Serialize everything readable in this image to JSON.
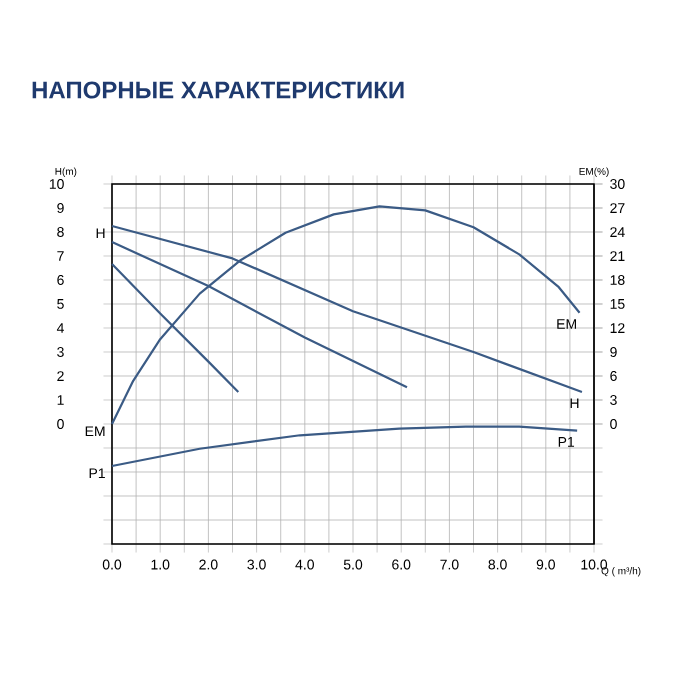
{
  "chart_data": {
    "type": "line",
    "title": "НАПОРНЫЕ ХАРАКТЕРИСТИКИ",
    "xlabel": "Q ( m³/h)",
    "ylabel": "H(m)",
    "y2label": "EM(%)",
    "xlim": [
      0,
      10
    ],
    "xticks": [
      {
        "value": 0,
        "label": "0.0"
      },
      {
        "value": 0.5,
        "label": null
      },
      {
        "value": 1,
        "label": "1.0"
      },
      {
        "value": 1.5,
        "label": null
      },
      {
        "value": 2,
        "label": "2.0"
      },
      {
        "value": 2.5,
        "label": null
      },
      {
        "value": 3,
        "label": "3.0"
      },
      {
        "value": 3.5,
        "label": null
      },
      {
        "value": 4,
        "label": "4.0"
      },
      {
        "value": 4.5,
        "label": null
      },
      {
        "value": 5,
        "label": "5.0"
      },
      {
        "value": 5.5,
        "label": null
      },
      {
        "value": 6,
        "label": "6.0"
      },
      {
        "value": 6.5,
        "label": null
      },
      {
        "value": 7,
        "label": "7.0"
      },
      {
        "value": 7.5,
        "label": null
      },
      {
        "value": 8,
        "label": "8.0"
      },
      {
        "value": 8.5,
        "label": null
      },
      {
        "value": 9,
        "label": "9.0"
      },
      {
        "value": 9.5,
        "label": null
      },
      {
        "value": 10,
        "label": "10.0"
      }
    ],
    "ylim": [
      -5,
      10
    ],
    "yticks": [
      {
        "value": -5,
        "label": null
      },
      {
        "value": -4,
        "label": null
      },
      {
        "value": -3,
        "label": null
      },
      {
        "value": -2,
        "label": null
      },
      {
        "value": -1,
        "label": null
      },
      0,
      1,
      2,
      3,
      4,
      5,
      6,
      7,
      8,
      9,
      10
    ],
    "y2lim": [
      -15,
      30
    ],
    "y2ticks": [
      0,
      3,
      6,
      9,
      12,
      15,
      18,
      21,
      24,
      27,
      30
    ],
    "grid": true,
    "line_style": "solid",
    "marker": "none",
    "series": [
      {
        "name": "H",
        "color": "#3b5b85",
        "x": [
          0,
          2.5,
          5,
          7.5,
          9.75
        ],
        "values": [
          8.25,
          6.9,
          4.7,
          3.0,
          1.33
        ]
      },
      {
        "color": "#3b5b85",
        "x": [
          0,
          2,
          4,
          6.12
        ],
        "values": [
          7.58,
          5.75,
          3.6,
          1.53
        ]
      },
      {
        "color": "#3b5b85",
        "x": [
          0,
          1,
          2,
          2.62
        ],
        "values": [
          6.67,
          4.6,
          2.6,
          1.33
        ]
      },
      {
        "name": "EM",
        "color": "#3b5b85",
        "axis": "y2",
        "x": [
          0,
          0.44,
          1,
          1.82,
          2.65,
          3.6,
          4.6,
          5.55,
          6.5,
          7.5,
          8.45,
          9.27,
          9.7
        ],
        "values": [
          0,
          5.4,
          10.6,
          16.3,
          20.4,
          23.9,
          26.2,
          27.2,
          26.7,
          24.6,
          21.2,
          17.1,
          13.9
        ]
      },
      {
        "name": "P1",
        "color": "#3b5b85",
        "x": [
          0,
          1.82,
          3.9,
          5.96,
          7.34,
          8.45,
          9.65
        ],
        "values": [
          -1.75,
          -1.03,
          -0.47,
          -0.19,
          -0.11,
          -0.11,
          -0.28
        ]
      }
    ]
  }
}
